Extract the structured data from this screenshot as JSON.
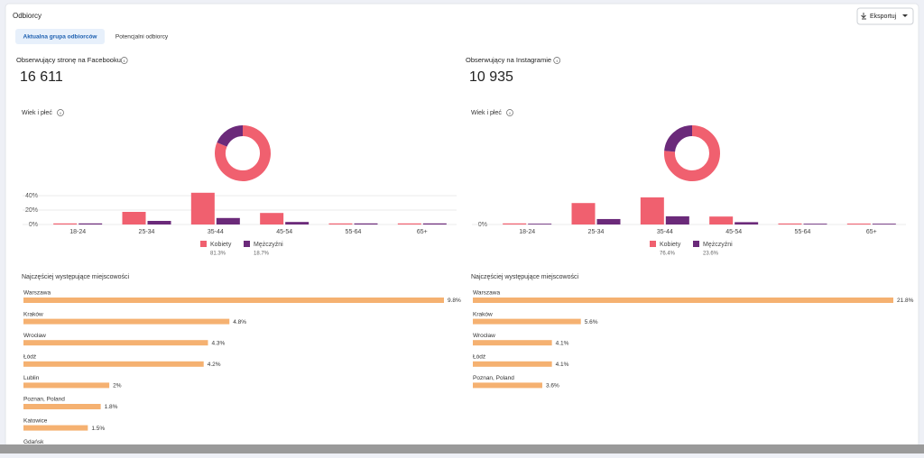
{
  "header": {
    "title": "Odbiorcy",
    "export_button": "Eksportuj"
  },
  "tabs": [
    {
      "label": "Aktualna grupa odbiorców",
      "active": true
    },
    {
      "label": "Potencjalni odbiorcy",
      "active": false
    }
  ],
  "panels": [
    {
      "followers_label": "Obserwujący stronę na Facebooku",
      "followers_count": "16 611",
      "age_gender": {
        "type": "bar",
        "title": "Wiek i płeć",
        "categories": [
          "18-24",
          "25-34",
          "35-44",
          "45-54",
          "55-64",
          "65+"
        ],
        "series": [
          {
            "name": "Kobiety",
            "color": "#f0606f",
            "values": [
              1.5,
              17.5,
              44,
              16,
              1.5,
              1.5
            ],
            "share": 81.3,
            "share_label": "81.3%"
          },
          {
            "name": "Mężczyźni",
            "color": "#6b2a7a",
            "values": [
              1.5,
              5,
              9,
              3.5,
              1.5,
              1.5
            ],
            "share": 18.7,
            "share_label": "18.7%"
          }
        ],
        "ylim": [
          0,
          40
        ],
        "yticks": [
          {
            "value": 0,
            "label": "0%"
          },
          {
            "value": 20,
            "label": "20%"
          },
          {
            "value": 40,
            "label": "40%"
          }
        ],
        "grid": true
      },
      "cities": {
        "title": "Najczęściej występujące miejscowości",
        "color": "#f5b171",
        "items": [
          {
            "name": "Warszawa",
            "value": 9.8,
            "value_label": "9.8%"
          },
          {
            "name": "Kraków",
            "value": 4.8,
            "value_label": "4.8%"
          },
          {
            "name": "Wrocław",
            "value": 4.3,
            "value_label": "4.3%"
          },
          {
            "name": "Łódź",
            "value": 4.2,
            "value_label": "4.2%"
          },
          {
            "name": "Lublin",
            "value": 2,
            "value_label": "2%"
          },
          {
            "name": "Poznan, Poland",
            "value": 1.8,
            "value_label": "1.8%"
          },
          {
            "name": "Katowice",
            "value": 1.5,
            "value_label": "1.5%"
          },
          {
            "name": "Gdańsk"
          }
        ]
      }
    },
    {
      "followers_label": "Obserwujący na Instagramie",
      "followers_count": "10 935",
      "age_gender": {
        "type": "bar",
        "title": "Wiek i płeć",
        "categories": [
          "18-24",
          "25-34",
          "35-44",
          "45-54",
          "55-64",
          "65+"
        ],
        "series": [
          {
            "name": "Kobiety",
            "color": "#f0606f",
            "values": [
              1.4,
              27.5,
              34.8,
              10.2,
              1.3,
              1.2
            ],
            "share": 76.4,
            "share_label": "76.4%"
          },
          {
            "name": "Mężczyźni",
            "color": "#6b2a7a",
            "values": [
              1,
              7,
              10.5,
              3,
              1,
              1
            ],
            "share": 23.6,
            "share_label": "23.6%"
          }
        ],
        "ylim": [
          0,
          37
        ],
        "yticks": [
          {
            "value": 0,
            "label": "0%"
          }
        ],
        "grid": false
      },
      "cities": {
        "title": "Najczęściej występujące miejscowości",
        "color": "#f5b171",
        "items": [
          {
            "name": "Warszawa",
            "value": 21.8,
            "value_label": "21.8%"
          },
          {
            "name": "Kraków",
            "value": 5.6,
            "value_label": "5.6%"
          },
          {
            "name": "Wrocław",
            "value": 4.1,
            "value_label": "4.1%"
          },
          {
            "name": "Łódź",
            "value": 4.1,
            "value_label": "4.1%"
          },
          {
            "name": "Poznan, Poland",
            "value": 3.6,
            "value_label": "3.6%"
          }
        ]
      }
    }
  ]
}
